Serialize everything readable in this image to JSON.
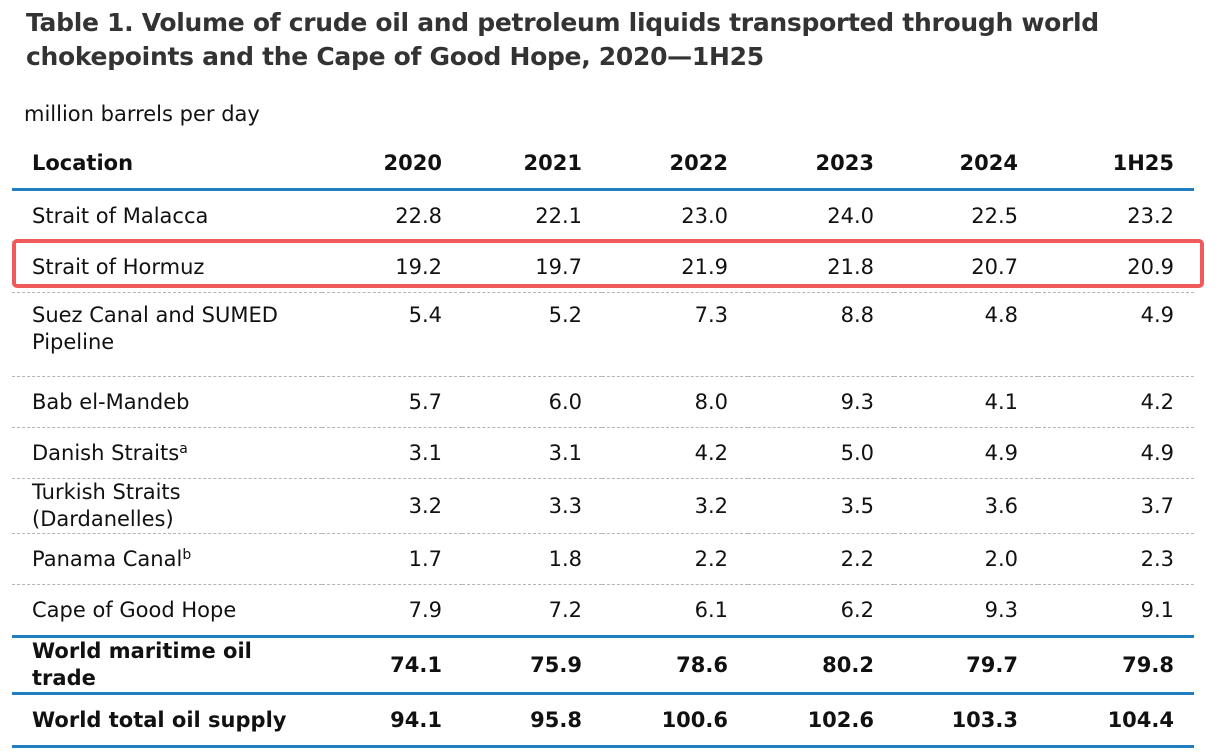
{
  "title": "Table 1. Volume of crude oil and petroleum liquids transported through world chokepoints and the Cape of Good Hope, 2020—1H25",
  "units": "million barrels per day",
  "columns": [
    "Location",
    "2020",
    "2021",
    "2022",
    "2023",
    "2024",
    "1H25"
  ],
  "highlight": {
    "row_label": "Strait of Hormuz",
    "color": "#f05a5a"
  },
  "accent_color": "#1f7fc0",
  "rows": [
    {
      "location": "Strait of Malacca",
      "sup": "",
      "values": [
        "22.8",
        "22.1",
        "23.0",
        "24.0",
        "22.5",
        "23.2"
      ]
    },
    {
      "location": "Strait of Hormuz",
      "sup": "",
      "values": [
        "19.2",
        "19.7",
        "21.9",
        "21.8",
        "20.7",
        "20.9"
      ]
    },
    {
      "location": "Suez Canal and SUMED Pipeline",
      "sup": "",
      "values": [
        "5.4",
        "5.2",
        "7.3",
        "8.8",
        "4.8",
        "4.9"
      ]
    },
    {
      "location": "Bab el-Mandeb",
      "sup": "",
      "values": [
        "5.7",
        "6.0",
        "8.0",
        "9.3",
        "4.1",
        "4.2"
      ]
    },
    {
      "location": "Danish Straits",
      "sup": "a",
      "values": [
        "3.1",
        "3.1",
        "4.2",
        "5.0",
        "4.9",
        "4.9"
      ]
    },
    {
      "location": "Turkish Straits (Dardanelles)",
      "sup": "",
      "values": [
        "3.2",
        "3.3",
        "3.2",
        "3.5",
        "3.6",
        "3.7"
      ]
    },
    {
      "location": "Panama Canal",
      "sup": "b",
      "values": [
        "1.7",
        "1.8",
        "2.2",
        "2.2",
        "2.0",
        "2.3"
      ]
    },
    {
      "location": "Cape of Good Hope",
      "sup": "",
      "values": [
        "7.9",
        "7.2",
        "6.1",
        "6.2",
        "9.3",
        "9.1"
      ]
    }
  ],
  "totals": [
    {
      "location": "World maritime oil trade",
      "values": [
        "74.1",
        "75.9",
        "78.6",
        "80.2",
        "79.7",
        "79.8"
      ]
    },
    {
      "location": "World total oil supply",
      "values": [
        "94.1",
        "95.8",
        "100.6",
        "102.6",
        "103.3",
        "104.4"
      ]
    }
  ]
}
